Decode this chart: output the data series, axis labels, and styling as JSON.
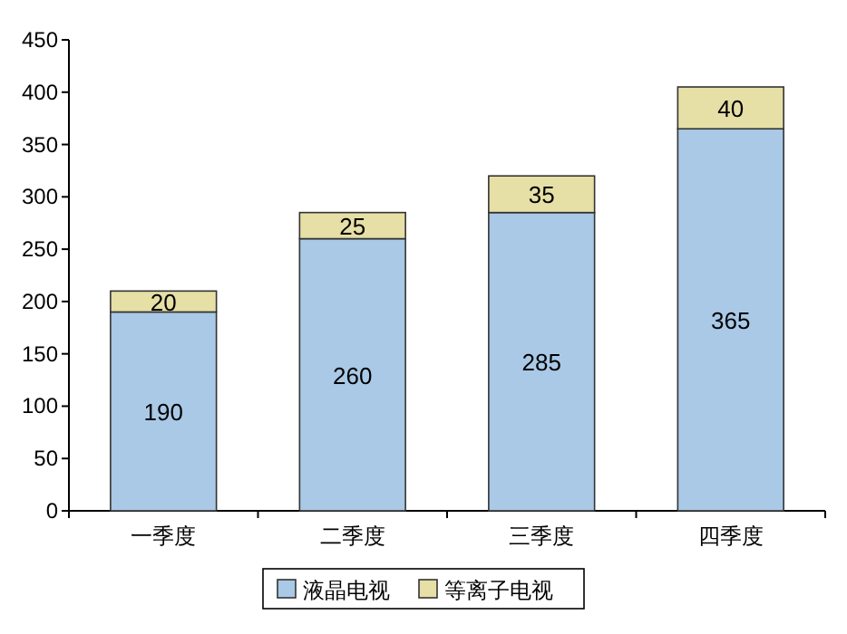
{
  "chart_data": {
    "type": "bar",
    "stacked": true,
    "categories": [
      "一季度",
      "二季度",
      "三季度",
      "四季度"
    ],
    "series": [
      {
        "name": "液晶电视",
        "color": "#a9c9e6",
        "values": [
          190,
          260,
          285,
          365
        ]
      },
      {
        "name": "等离子电视",
        "color": "#e6dfa6",
        "values": [
          20,
          25,
          35,
          40
        ]
      }
    ],
    "ylim": [
      0,
      450
    ],
    "yticks": [
      0,
      50,
      100,
      150,
      200,
      250,
      300,
      350,
      400,
      450
    ],
    "data_labels": true,
    "legend": "bottom",
    "grid": false
  }
}
